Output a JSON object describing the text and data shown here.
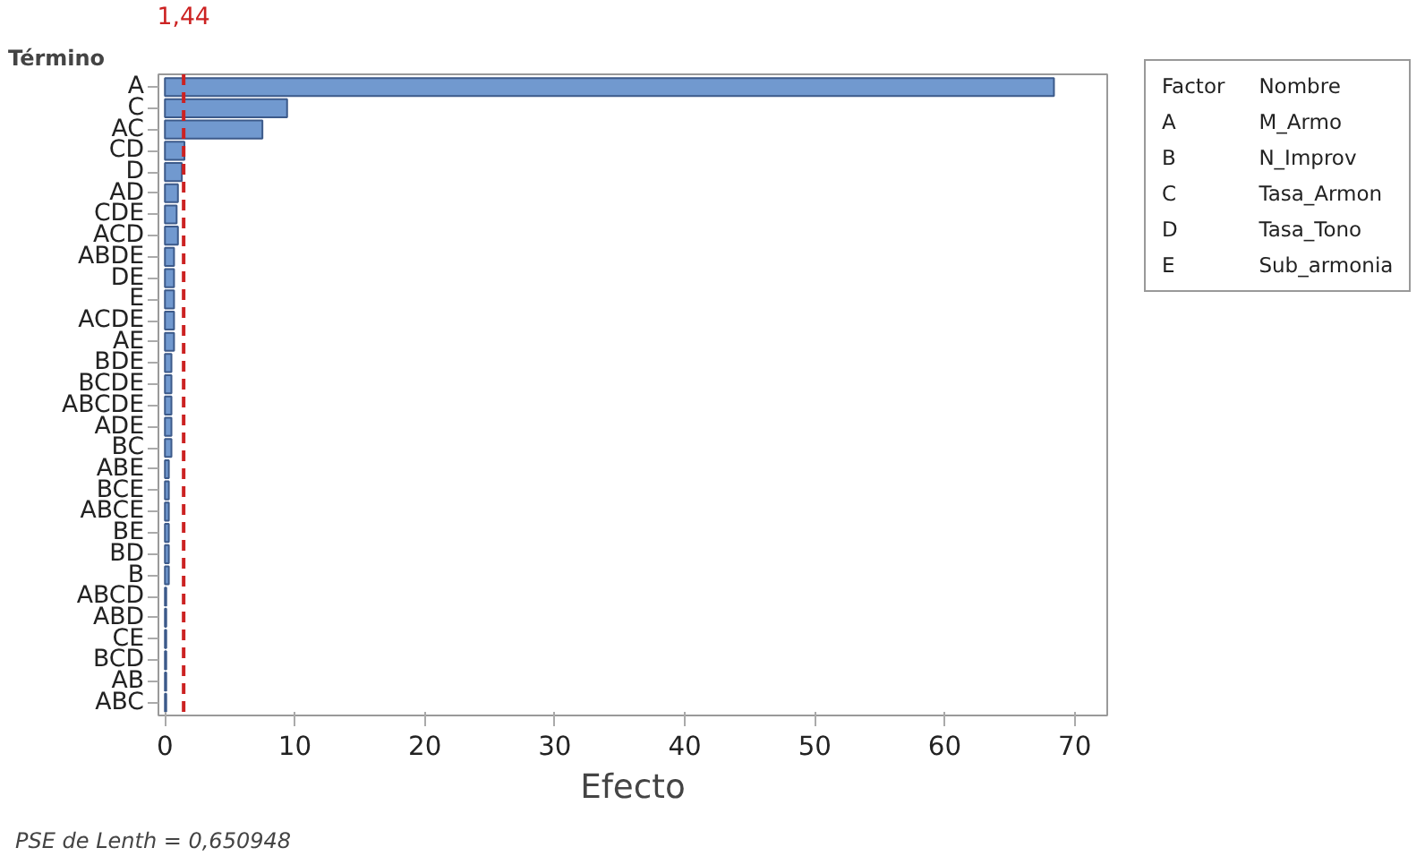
{
  "chart_data": {
    "type": "bar",
    "orientation": "horizontal",
    "xlabel": "Efecto",
    "ylabel": "Término",
    "categories": [
      "A",
      "C",
      "AC",
      "CD",
      "D",
      "AD",
      "CDE",
      "ACD",
      "ABDE",
      "DE",
      "E",
      "ACDE",
      "AE",
      "BDE",
      "BCDE",
      "ABCDE",
      "ADE",
      "BC",
      "ABE",
      "BCE",
      "ABCE",
      "BE",
      "BD",
      "B",
      "ABCD",
      "ABD",
      "CE",
      "BCD",
      "AB",
      "ABC"
    ],
    "values": [
      68.4,
      9.4,
      7.5,
      1.5,
      1.3,
      1.0,
      0.9,
      1.0,
      0.7,
      0.7,
      0.7,
      0.7,
      0.7,
      0.5,
      0.5,
      0.5,
      0.5,
      0.5,
      0.3,
      0.3,
      0.3,
      0.3,
      0.3,
      0.3,
      0.1,
      0.1,
      0.1,
      0.1,
      0.1,
      0.1
    ],
    "color": "#7199cf",
    "xlim": [
      -0.5,
      72.5
    ],
    "xticks": [
      0,
      10,
      20,
      30,
      40,
      50,
      60,
      70
    ],
    "grid": false,
    "ref_lines": [
      {
        "axis": "x",
        "value": 1.44,
        "label": "1,44",
        "color": "#cc2222",
        "line_style": "dashed"
      }
    ],
    "annotations": [
      "PSE de Lenth = 0,650948",
      "Factor  Nombre",
      "A  M_Armo",
      "B  N_Improv",
      "C  Tasa_Armon",
      "D  Tasa_Tono",
      "E  Sub_armonia"
    ]
  }
}
